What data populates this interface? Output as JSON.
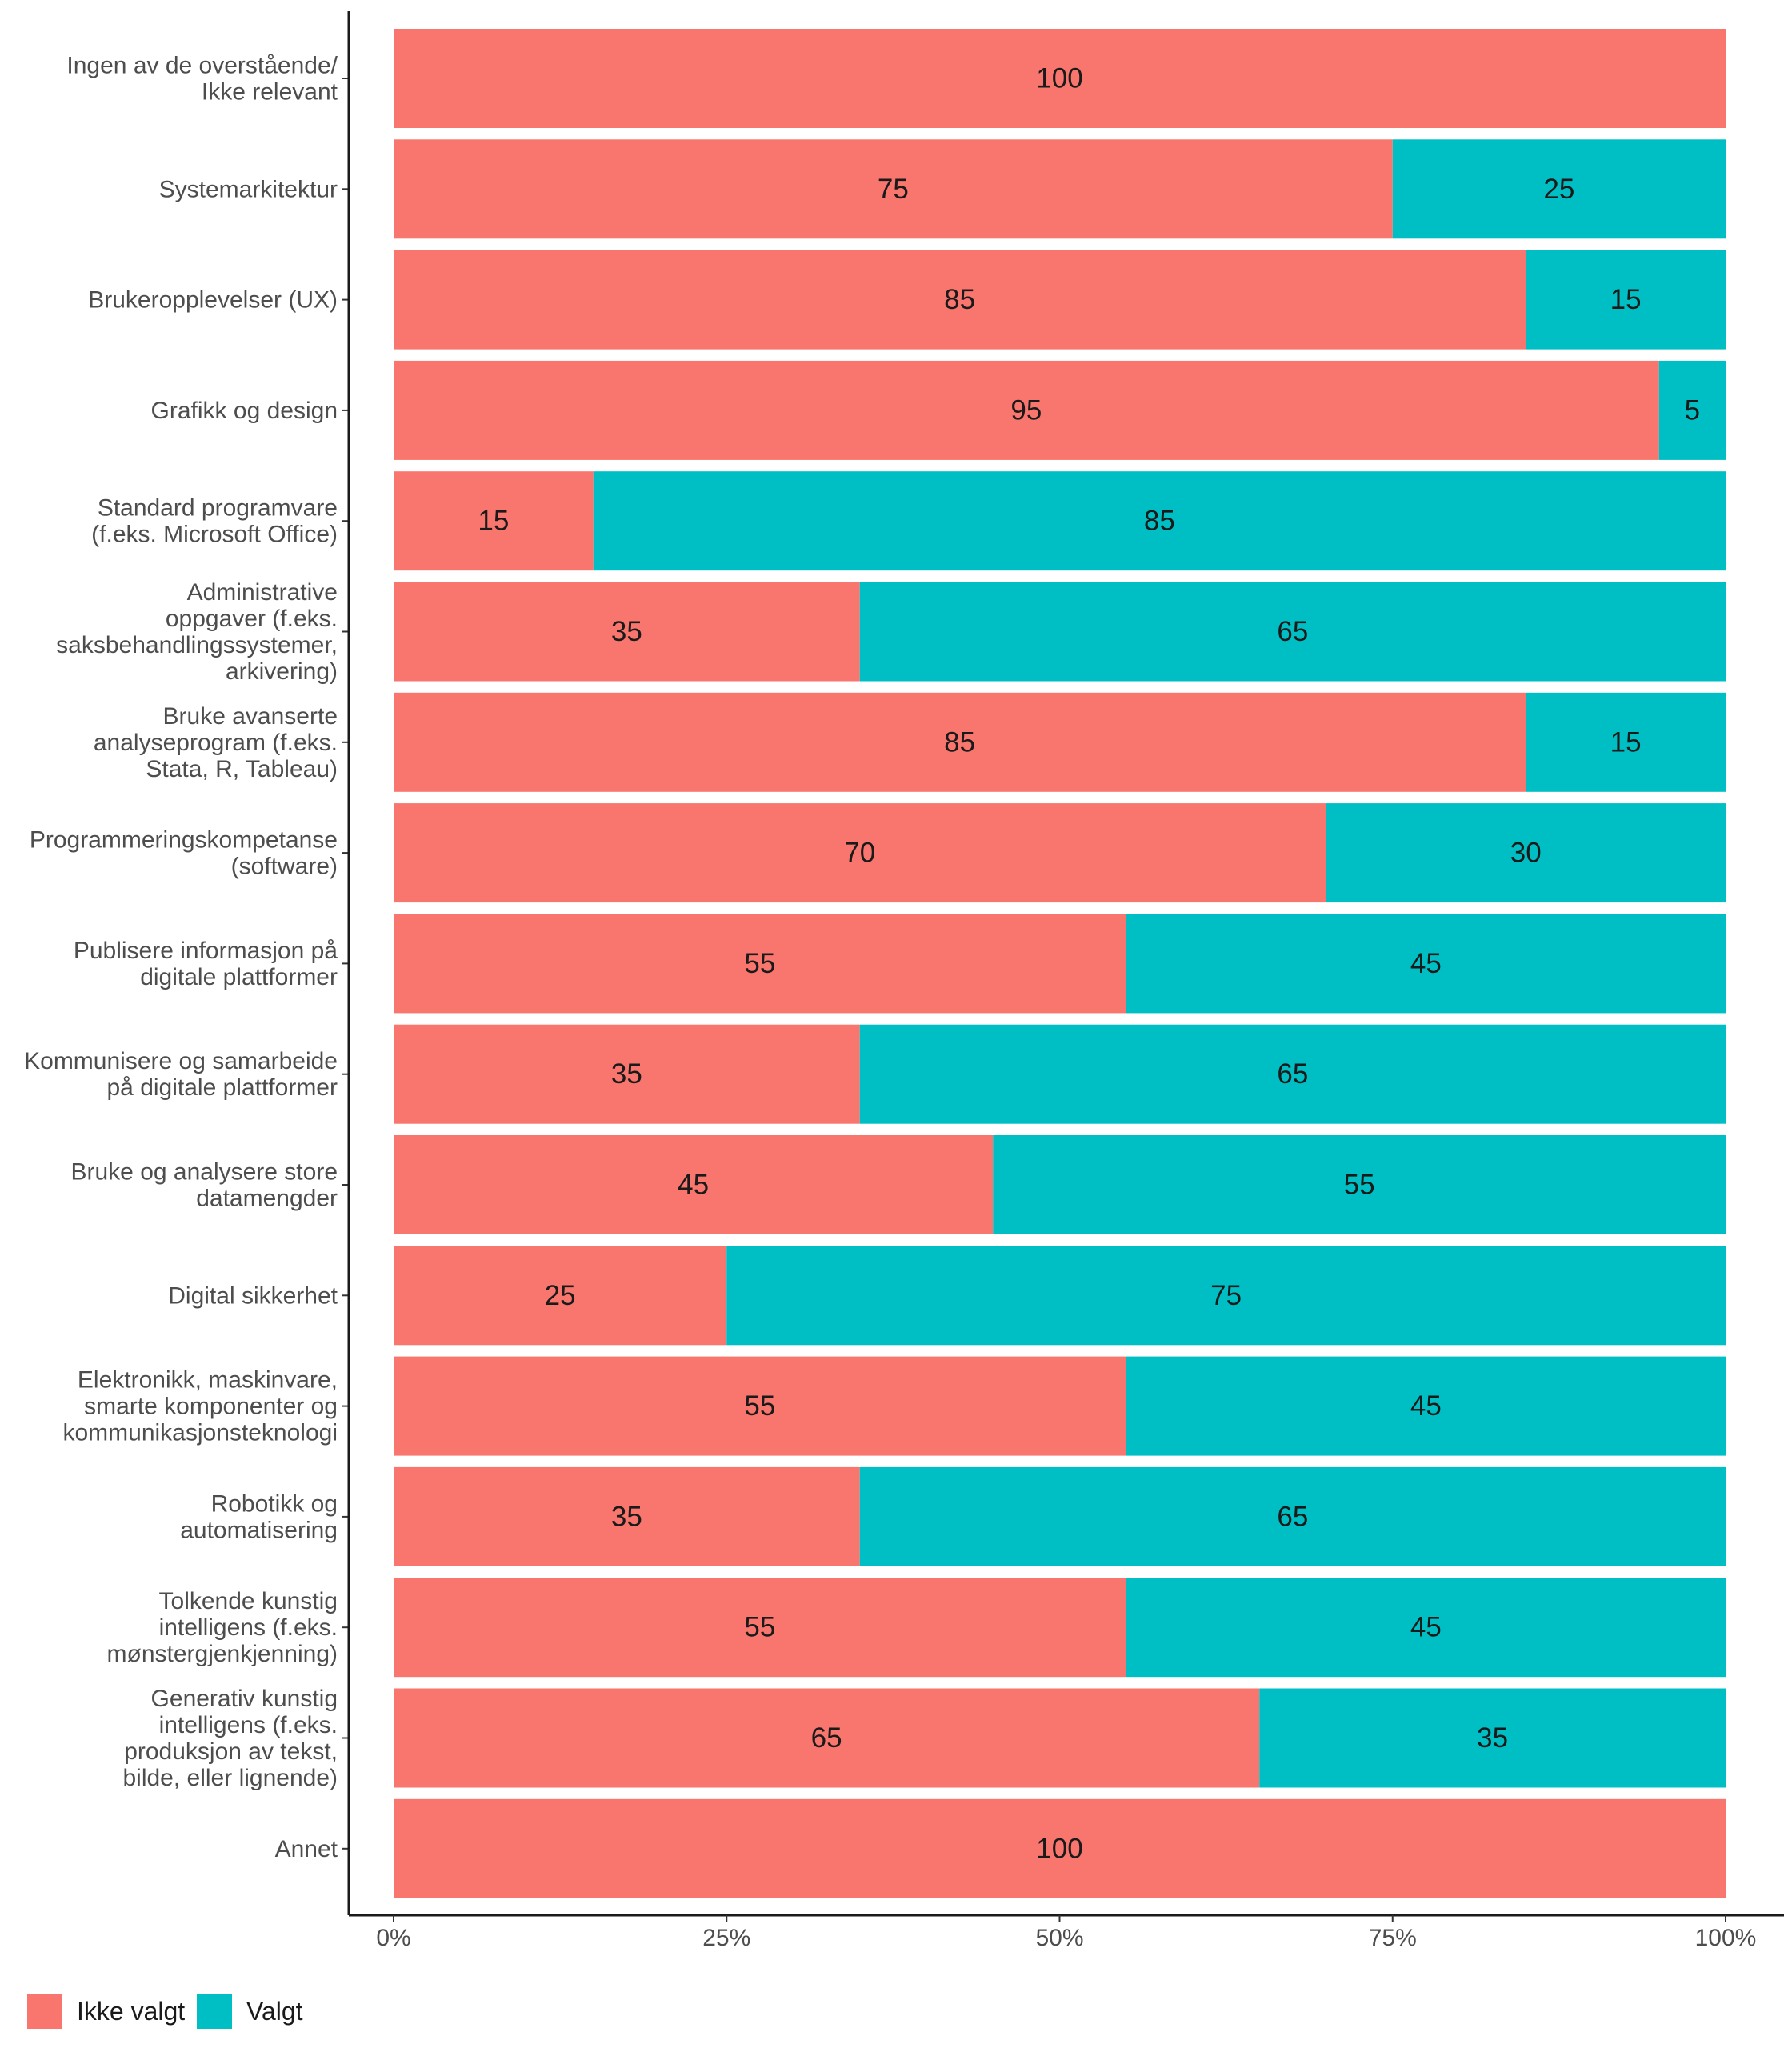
{
  "chart_data": {
    "type": "bar",
    "orientation": "horizontal",
    "stacked": true,
    "normalized": true,
    "categories": [
      [
        "Ingen av de overstående/",
        "Ikke relevant"
      ],
      [
        "Systemarkitektur"
      ],
      [
        "Brukeropplevelser (UX)"
      ],
      [
        "Grafikk og design"
      ],
      [
        "Standard programvare",
        "(f.eks. Microsoft Office)"
      ],
      [
        "Administrative",
        "oppgaver (f.eks.",
        "saksbehandlingssystemer,",
        "arkivering)"
      ],
      [
        "Bruke avanserte",
        "analyseprogram (f.eks.",
        "Stata, R, Tableau)"
      ],
      [
        "Programmeringskompetanse",
        "(software)"
      ],
      [
        "Publisere informasjon på",
        "digitale plattformer"
      ],
      [
        "Kommunisere og samarbeide",
        "på digitale plattformer"
      ],
      [
        "Bruke og analysere store",
        "datamengder"
      ],
      [
        "Digital sikkerhet"
      ],
      [
        "Elektronikk, maskinvare,",
        "smarte komponenter og",
        "kommunikasjonsteknologi"
      ],
      [
        "Robotikk og",
        "automatisering"
      ],
      [
        "Tolkende kunstig",
        "intelligens (f.eks.",
        "mønstergjenkjenning)"
      ],
      [
        "Generativ kunstig",
        "intelligens (f.eks.",
        "produksjon av tekst,",
        "bilde, eller lignende)"
      ],
      [
        "Annet"
      ]
    ],
    "series": [
      {
        "name": "Ikke valgt",
        "color": "#F8766D",
        "values": [
          100,
          75,
          85,
          95,
          15,
          35,
          85,
          70,
          55,
          35,
          45,
          25,
          55,
          35,
          55,
          65,
          100
        ]
      },
      {
        "name": "Valgt",
        "color": "#00BFC4",
        "values": [
          0,
          25,
          15,
          5,
          85,
          65,
          15,
          30,
          45,
          65,
          55,
          75,
          45,
          65,
          45,
          35,
          0
        ]
      }
    ],
    "xlim": [
      0,
      100
    ],
    "x_ticks": [
      "0%",
      "25%",
      "50%",
      "75%",
      "100%"
    ],
    "grid": false,
    "legend_position": "bottom-left"
  }
}
